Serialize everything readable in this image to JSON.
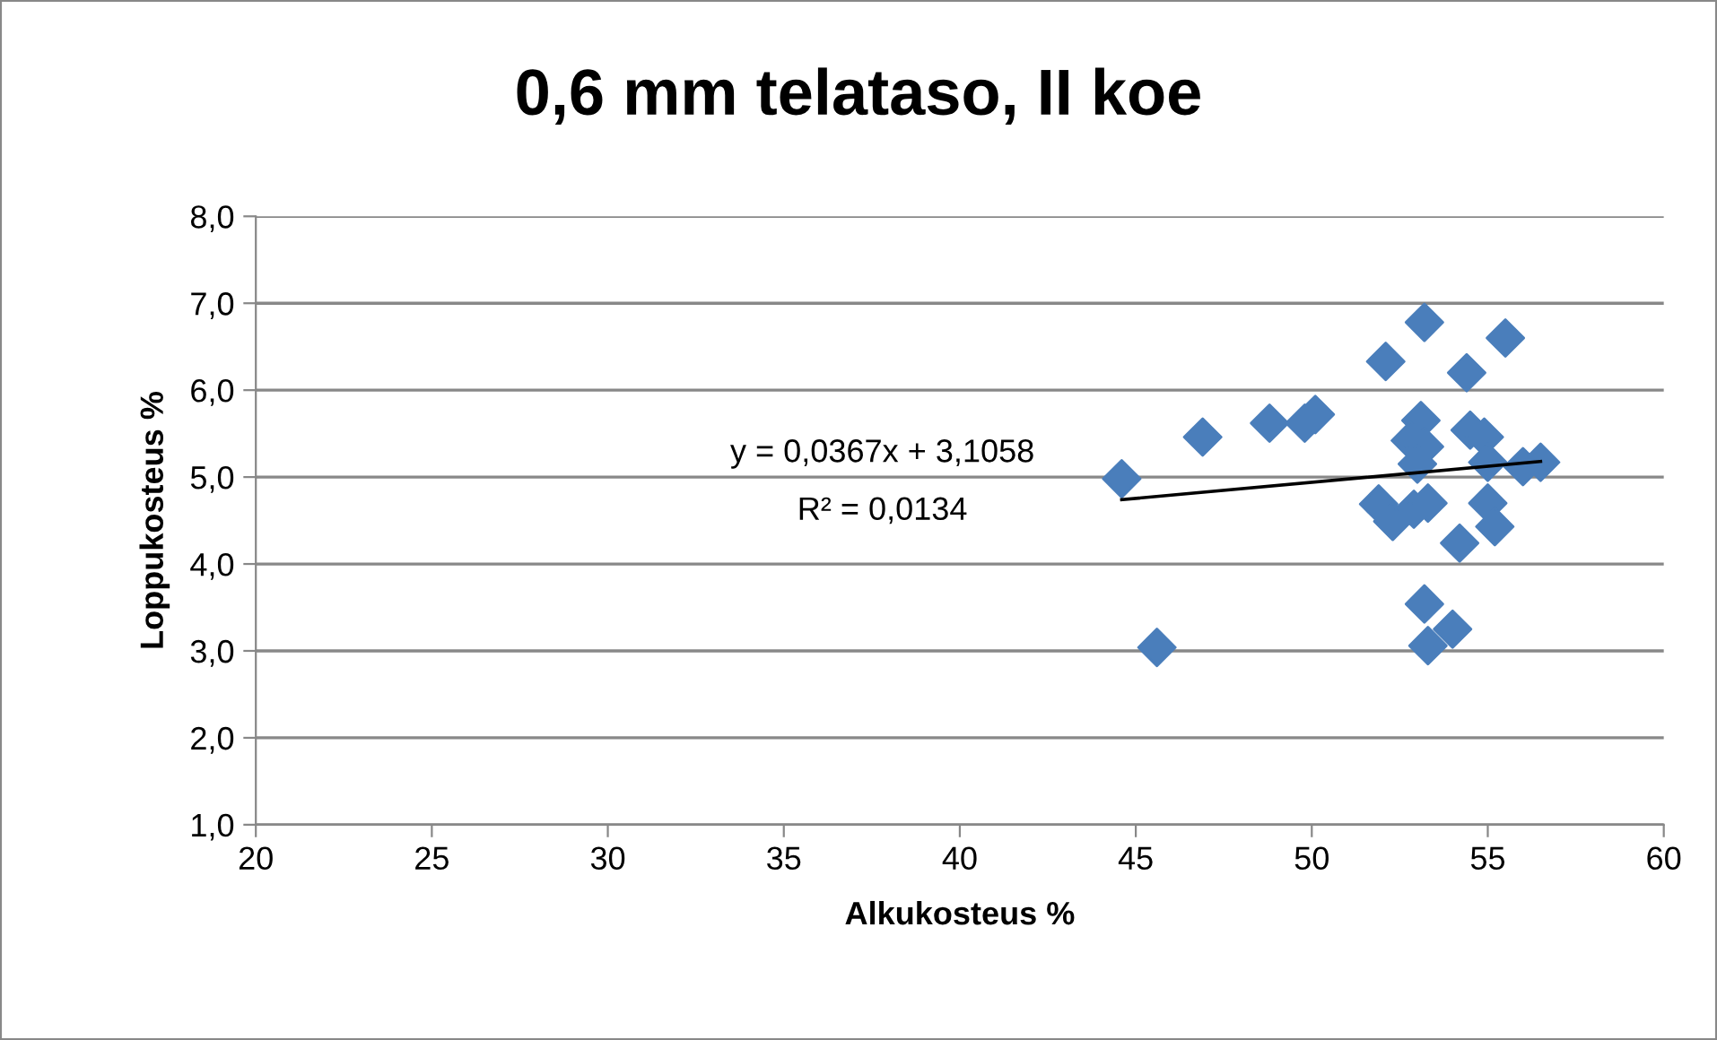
{
  "chart_data": {
    "type": "scatter",
    "title": "0,6 mm telataso, II koe",
    "xlabel": "Alkukosteus %",
    "ylabel": "Loppukosteus %",
    "xlim": [
      20,
      60
    ],
    "xticks": [
      20,
      25,
      30,
      35,
      40,
      45,
      50,
      55,
      60
    ],
    "ylim": [
      1,
      8
    ],
    "yticks": [
      {
        "value": 1,
        "label": "1,0"
      },
      {
        "value": 2,
        "label": "2,0"
      },
      {
        "value": 3,
        "label": "3,0"
      },
      {
        "value": 4,
        "label": "4,0"
      },
      {
        "value": 5,
        "label": "5,0"
      },
      {
        "value": 6,
        "label": "6,0"
      },
      {
        "value": 7,
        "label": "7,0"
      },
      {
        "value": 8,
        "label": "8,0"
      }
    ],
    "grid": "y",
    "marker": "diamond",
    "legend": false,
    "series": [
      {
        "color": "#4a7ebb",
        "x": [
          44.6,
          45.6,
          46.9,
          48.8,
          49.8,
          50.1,
          52.1,
          53.2,
          55.5,
          54.4,
          53.1,
          52.8,
          53.2,
          53.0,
          54.5,
          54.9,
          55.0,
          56.0,
          56.5,
          51.9,
          52.3,
          52.9,
          53.3,
          55.0,
          55.2,
          54.2,
          53.2,
          54.0,
          53.3
        ],
        "values": [
          4.98,
          3.04,
          5.46,
          5.62,
          5.62,
          5.72,
          6.33,
          6.78,
          6.6,
          6.2,
          5.65,
          5.42,
          5.35,
          5.15,
          5.54,
          5.46,
          5.17,
          5.12,
          5.17,
          4.69,
          4.49,
          4.63,
          4.7,
          4.7,
          4.43,
          4.24,
          3.54,
          3.25,
          3.06
        ]
      },
      {
        "type": "line",
        "color": "#000000",
        "marker": "none",
        "x": [
          44.6,
          56.5
        ],
        "values": [
          4.74,
          5.18
        ]
      }
    ],
    "annotations": [
      "y = 0,0367x + 3,1058",
      "R² = 0,0134"
    ]
  }
}
